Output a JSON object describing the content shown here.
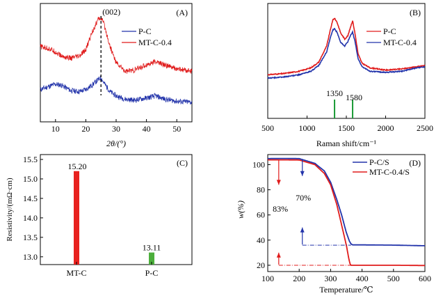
{
  "chart_data": [
    {
      "panel": "(A)",
      "type": "line",
      "title": "",
      "xlabel": "2θ/(°)",
      "ylabel": "",
      "xlim": [
        5,
        55
      ],
      "ylim": [
        0,
        1
      ],
      "xticks": [
        10,
        20,
        30,
        40,
        50
      ],
      "legend_position": "top-right",
      "annotation": "(002)",
      "annotation_x": 25,
      "series": [
        {
          "name": "P-C",
          "color": "#2233aa",
          "x": [
            5,
            8,
            10,
            12,
            15,
            18,
            20,
            22,
            24,
            25,
            26,
            28,
            30,
            33,
            36,
            40,
            43,
            46,
            50,
            55
          ],
          "y": [
            0.25,
            0.28,
            0.3,
            0.29,
            0.24,
            0.23,
            0.25,
            0.29,
            0.34,
            0.36,
            0.31,
            0.23,
            0.19,
            0.16,
            0.15,
            0.17,
            0.19,
            0.16,
            0.14,
            0.13
          ]
        },
        {
          "name": "MT-C-0.4",
          "color": "#e01b1b",
          "x": [
            5,
            8,
            10,
            12,
            15,
            18,
            20,
            22,
            24,
            25,
            26,
            28,
            30,
            33,
            36,
            40,
            43,
            46,
            50,
            55
          ],
          "y": [
            0.65,
            0.63,
            0.6,
            0.56,
            0.54,
            0.56,
            0.62,
            0.78,
            0.9,
            0.92,
            0.86,
            0.65,
            0.5,
            0.42,
            0.43,
            0.48,
            0.51,
            0.48,
            0.44,
            0.42
          ]
        }
      ]
    },
    {
      "panel": "(B)",
      "type": "line",
      "title": "",
      "xlabel": "Raman shift/cm⁻¹",
      "ylabel": "",
      "xlim": [
        500,
        2500
      ],
      "ylim": [
        0,
        1
      ],
      "xticks": [
        500,
        1000,
        1500,
        2000,
        2500
      ],
      "legend_position": "top-right",
      "markers": [
        1350,
        1580
      ],
      "series": [
        {
          "name": "P-C",
          "color": "#e01b1b",
          "x": [
            500,
            700,
            900,
            1050,
            1150,
            1250,
            1300,
            1330,
            1350,
            1380,
            1430,
            1480,
            1520,
            1560,
            1580,
            1610,
            1650,
            1700,
            1800,
            2000,
            2200,
            2400,
            2500
          ],
          "y": [
            0.38,
            0.39,
            0.41,
            0.44,
            0.49,
            0.63,
            0.78,
            0.86,
            0.87,
            0.84,
            0.74,
            0.69,
            0.72,
            0.81,
            0.85,
            0.74,
            0.56,
            0.48,
            0.44,
            0.42,
            0.43,
            0.45,
            0.46
          ]
        },
        {
          "name": "MT-C-0.4",
          "color": "#2233aa",
          "x": [
            500,
            700,
            900,
            1050,
            1150,
            1250,
            1300,
            1330,
            1350,
            1380,
            1430,
            1480,
            1520,
            1560,
            1580,
            1610,
            1650,
            1700,
            1800,
            2000,
            2200,
            2400,
            2500
          ],
          "y": [
            0.35,
            0.36,
            0.38,
            0.41,
            0.46,
            0.58,
            0.71,
            0.77,
            0.78,
            0.75,
            0.66,
            0.63,
            0.67,
            0.73,
            0.75,
            0.67,
            0.52,
            0.45,
            0.41,
            0.4,
            0.41,
            0.44,
            0.45
          ]
        }
      ]
    },
    {
      "panel": "(C)",
      "type": "bar",
      "title": "",
      "xlabel": "",
      "ylabel": "Resistivity/(mΩ·cm)",
      "ylim": [
        12.8,
        15.5
      ],
      "yticks": [
        13.0,
        13.5,
        14.0,
        14.5,
        15.0,
        15.5
      ],
      "categories": [
        "MT-C",
        "P-C"
      ],
      "values": [
        15.2,
        13.11
      ],
      "value_labels": [
        "15.20",
        "13.11"
      ],
      "colors": [
        "#e8221f",
        "#4cae3c"
      ]
    },
    {
      "panel": "(D)",
      "type": "line",
      "title": "",
      "xlabel": "Temperature/℃",
      "ylabel": "w(%)",
      "xlim": [
        100,
        600
      ],
      "ylim": [
        15,
        108
      ],
      "xticks": [
        100,
        200,
        300,
        400,
        500,
        600
      ],
      "yticks": [
        20,
        40,
        60,
        80,
        100
      ],
      "legend_position": "top-right",
      "annotations": [
        "70%",
        "83%"
      ],
      "series": [
        {
          "name": "P-C/S",
          "color": "#2233aa",
          "x": [
            100,
            150,
            200,
            250,
            280,
            300,
            320,
            335,
            350,
            360,
            365,
            370,
            400,
            500,
            600
          ],
          "y": [
            104.8,
            104.9,
            104.8,
            101,
            95,
            86,
            72,
            60,
            46,
            39,
            37,
            36.2,
            36.2,
            36,
            35.5
          ]
        },
        {
          "name": "MT-C-0.4/S",
          "color": "#e01b1b",
          "x": [
            100,
            150,
            200,
            250,
            280,
            300,
            320,
            335,
            350,
            358,
            362,
            365,
            400,
            500,
            600
          ],
          "y": [
            103.8,
            103.8,
            103.7,
            100,
            93,
            84,
            68,
            52,
            36,
            25,
            21,
            20,
            20,
            20,
            19.8
          ]
        }
      ]
    }
  ]
}
